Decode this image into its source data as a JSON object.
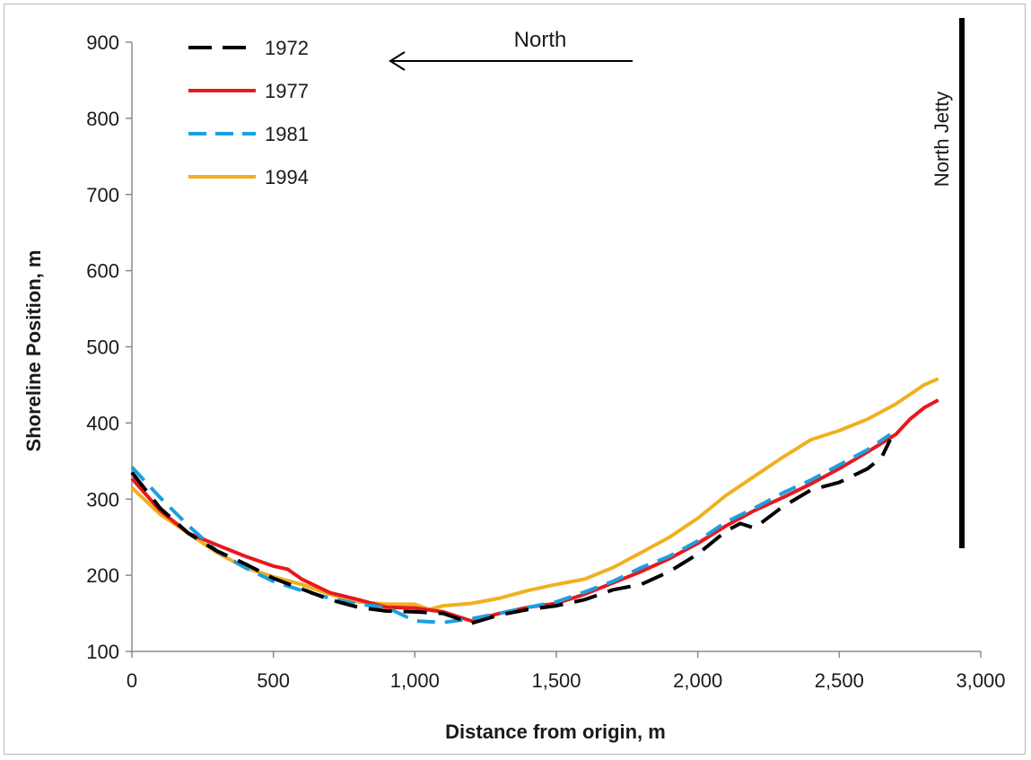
{
  "chart_data": {
    "type": "line",
    "title": "",
    "xlabel": "Distance from origin, m",
    "ylabel": "Shoreline Position, m",
    "xlim": [
      0,
      3000
    ],
    "ylim": [
      100,
      900
    ],
    "xticks": [
      0,
      500,
      1000,
      1500,
      2000,
      2500,
      3000
    ],
    "xtick_labels": [
      "0",
      "500",
      "1,000",
      "1,500",
      "2,000",
      "2,500",
      "3,000"
    ],
    "yticks": [
      100,
      200,
      300,
      400,
      500,
      600,
      700,
      800,
      900
    ],
    "ytick_labels": [
      "100",
      "200",
      "300",
      "400",
      "500",
      "600",
      "700",
      "800",
      "900"
    ],
    "grid": false,
    "legend_position": "top-left",
    "series": [
      {
        "name": "1972",
        "color": "#000000",
        "dash": "long-dash",
        "x": [
          0,
          100,
          200,
          300,
          400,
          500,
          600,
          700,
          800,
          900,
          1000,
          1100,
          1200,
          1300,
          1400,
          1500,
          1600,
          1700,
          1800,
          1900,
          2000,
          2100,
          2150,
          2200,
          2300,
          2400,
          2500,
          2600,
          2650,
          2680
        ],
        "y": [
          335,
          288,
          255,
          232,
          215,
          196,
          182,
          168,
          158,
          153,
          152,
          150,
          137,
          148,
          155,
          160,
          168,
          181,
          188,
          205,
          228,
          258,
          268,
          262,
          290,
          312,
          322,
          340,
          355,
          378
        ]
      },
      {
        "name": "1977",
        "color": "#e8181c",
        "dash": "solid",
        "x": [
          0,
          100,
          200,
          300,
          400,
          500,
          550,
          600,
          700,
          800,
          900,
          1000,
          1100,
          1200,
          1300,
          1400,
          1500,
          1600,
          1700,
          1800,
          1900,
          2000,
          2100,
          2200,
          2300,
          2400,
          2500,
          2600,
          2700,
          2750,
          2800,
          2850
        ],
        "y": [
          327,
          285,
          255,
          240,
          225,
          212,
          208,
          195,
          177,
          168,
          158,
          157,
          152,
          140,
          150,
          158,
          163,
          175,
          190,
          205,
          222,
          242,
          265,
          285,
          302,
          320,
          340,
          362,
          385,
          405,
          420,
          430
        ]
      },
      {
        "name": "1981",
        "color": "#1ca0e0",
        "dash": "medium-dash",
        "x": [
          0,
          100,
          200,
          300,
          400,
          500,
          600,
          700,
          800,
          900,
          1000,
          1100,
          1200,
          1300,
          1400,
          1500,
          1600,
          1700,
          1800,
          1900,
          2000,
          2100,
          2200,
          2300,
          2400,
          2500,
          2600,
          2680
        ],
        "y": [
          342,
          302,
          265,
          232,
          210,
          192,
          180,
          170,
          162,
          158,
          140,
          138,
          143,
          150,
          158,
          165,
          178,
          192,
          210,
          225,
          245,
          270,
          288,
          308,
          325,
          345,
          365,
          385
        ]
      },
      {
        "name": "1994",
        "color": "#f0b020",
        "dash": "solid",
        "x": [
          0,
          100,
          200,
          300,
          400,
          500,
          600,
          700,
          800,
          900,
          1000,
          1050,
          1100,
          1200,
          1300,
          1400,
          1500,
          1600,
          1700,
          1800,
          1900,
          2000,
          2100,
          2200,
          2300,
          2400,
          2500,
          2600,
          2700,
          2800,
          2850
        ],
        "y": [
          315,
          280,
          255,
          230,
          210,
          198,
          188,
          175,
          165,
          162,
          162,
          155,
          160,
          163,
          170,
          180,
          188,
          195,
          210,
          230,
          250,
          275,
          305,
          330,
          355,
          378,
          390,
          405,
          425,
          450,
          458
        ]
      }
    ],
    "annotations": [
      {
        "id": "north-arrow",
        "text": "North"
      },
      {
        "id": "north-jetty",
        "text": "North Jetty"
      }
    ]
  }
}
